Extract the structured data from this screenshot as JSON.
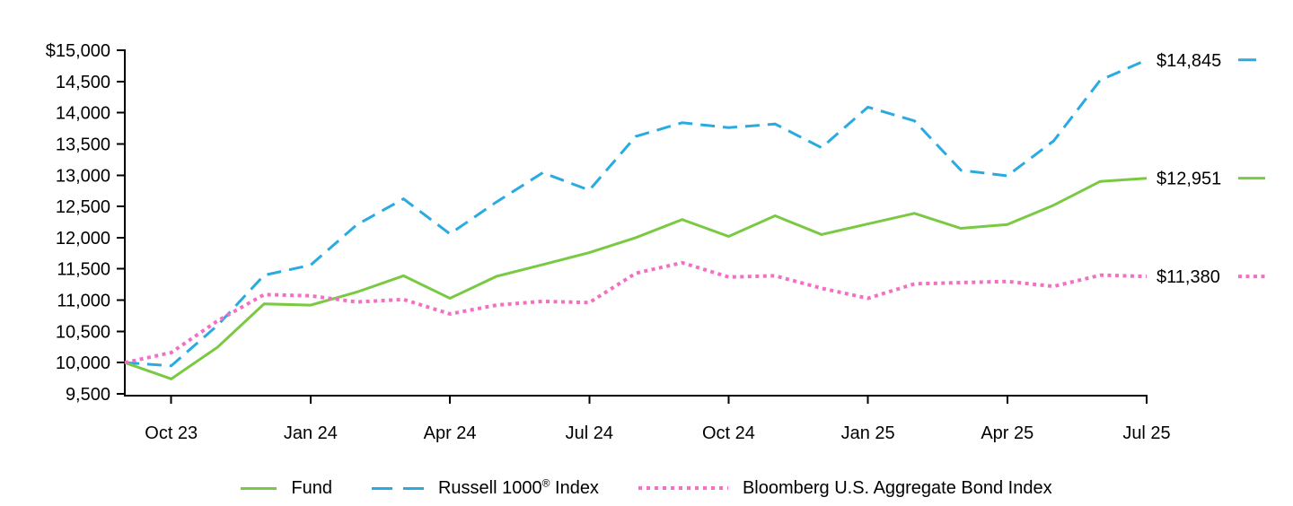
{
  "colors": {
    "fund": "#7AC943",
    "russell": "#29ABE2",
    "agg": "#F46FC4",
    "axis": "#000000"
  },
  "chart_data": {
    "type": "line",
    "title": "",
    "xlabel": "",
    "ylabel": "",
    "ylim": [
      9500,
      15000
    ],
    "y_tick_step": 500,
    "grid": false,
    "legend_position": "bottom",
    "x": [
      "Sep 23",
      "Oct 23",
      "Nov 23",
      "Dec 23",
      "Jan 24",
      "Feb 24",
      "Mar 24",
      "Apr 24",
      "May 24",
      "Jun 24",
      "Jul 24",
      "Aug 24",
      "Sep 24",
      "Oct 24",
      "Nov 24",
      "Dec 24",
      "Jan 25",
      "Feb 25",
      "Mar 25",
      "Apr 25",
      "May 25",
      "Jun 25",
      "Jul 25"
    ],
    "series": [
      {
        "key": "fund",
        "name": "Fund",
        "values": [
          10000,
          9740,
          10250,
          10940,
          10920,
          11130,
          11390,
          11030,
          11380,
          11570,
          11760,
          12000,
          12290,
          12020,
          12350,
          12050,
          12220,
          12390,
          12150,
          12210,
          12520,
          12900,
          12951
        ]
      },
      {
        "key": "russell",
        "name": "Russell 1000® Index",
        "values": [
          10000,
          9950,
          10600,
          11400,
          11560,
          12210,
          12620,
          12060,
          12570,
          13040,
          12760,
          13620,
          13840,
          13760,
          13820,
          13440,
          14090,
          13870,
          13080,
          12990,
          13550,
          14520,
          14845
        ]
      },
      {
        "key": "agg",
        "name": "Bloomberg U.S. Aggregate Bond Index",
        "values": [
          10000,
          10160,
          10670,
          11090,
          11070,
          10970,
          11010,
          10780,
          10920,
          10980,
          10960,
          11430,
          11600,
          11370,
          11390,
          11190,
          11030,
          11260,
          11280,
          11300,
          11220,
          11400,
          11380
        ]
      }
    ],
    "y_tick_labels": [
      "$15,000",
      "14,500",
      "14,000",
      "13,500",
      "13,000",
      "12,500",
      "12,000",
      "11,500",
      "11,000",
      "10,500",
      "10,000",
      "9,500"
    ],
    "x_tick_labels": [
      "Oct 23",
      "Jan 24",
      "Apr 24",
      "Jul 24",
      "Oct 24",
      "Jan 25",
      "Apr 25",
      "Jul 25"
    ],
    "x_tick_indices": [
      1,
      4,
      7,
      10,
      13,
      16,
      19,
      22
    ],
    "end_labels": [
      {
        "series": "russell",
        "text": "$14,845"
      },
      {
        "series": "fund",
        "text": "$12,951"
      },
      {
        "series": "agg",
        "text": "$11,380"
      }
    ]
  },
  "legend": {
    "items": [
      {
        "label": "Fund"
      },
      {
        "label_pre": "Russell 1000",
        "label_sup": "®",
        "label_post": " Index"
      },
      {
        "label": "Bloomberg U.S. Aggregate Bond Index"
      }
    ]
  }
}
